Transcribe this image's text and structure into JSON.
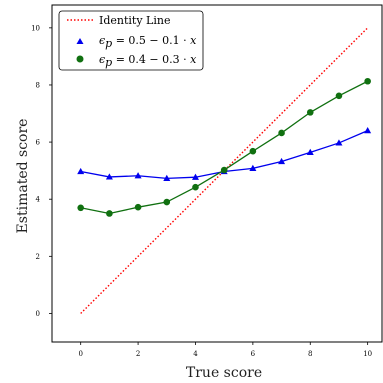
{
  "chart_data": {
    "type": "line",
    "xlabel": "True score",
    "ylabel": "Estimated score",
    "xlim": [
      -1,
      10.5
    ],
    "ylim": [
      -1,
      10.8
    ],
    "xticks": [
      0,
      2,
      4,
      6,
      8,
      10
    ],
    "yticks": [
      0,
      2,
      4,
      6,
      8,
      10
    ],
    "grid": false,
    "legend_position": "top-left",
    "series": [
      {
        "name": "Identity Line",
        "style": "dotted",
        "color": "#ff0000",
        "x": [
          0,
          10
        ],
        "y": [
          0,
          10
        ]
      },
      {
        "name": "ϵp = 0.5 − 0.1 · x",
        "name_parts": {
          "lhs": "ϵ",
          "sub": "p",
          "rhs": " = 0.5 − 0.1 · ",
          "var": "x"
        },
        "marker": "triangle",
        "color": "#0000ee",
        "x": [
          0,
          1,
          2,
          3,
          4,
          5,
          6,
          7,
          8,
          9,
          10
        ],
        "y": [
          4.97,
          4.78,
          4.82,
          4.73,
          4.77,
          4.97,
          5.08,
          5.32,
          5.64,
          5.97,
          6.4
        ]
      },
      {
        "name": "ϵp = 0.4 − 0.3 · x",
        "name_parts": {
          "lhs": "ϵ",
          "sub": "p",
          "rhs": " = 0.4 − 0.3 · ",
          "var": "x"
        },
        "marker": "circle",
        "color": "#107010",
        "x": [
          0,
          1,
          2,
          3,
          4,
          5,
          6,
          7,
          8,
          9,
          10
        ],
        "y": [
          3.7,
          3.5,
          3.72,
          3.9,
          4.42,
          5.02,
          5.68,
          6.32,
          7.04,
          7.62,
          8.13
        ]
      }
    ]
  }
}
